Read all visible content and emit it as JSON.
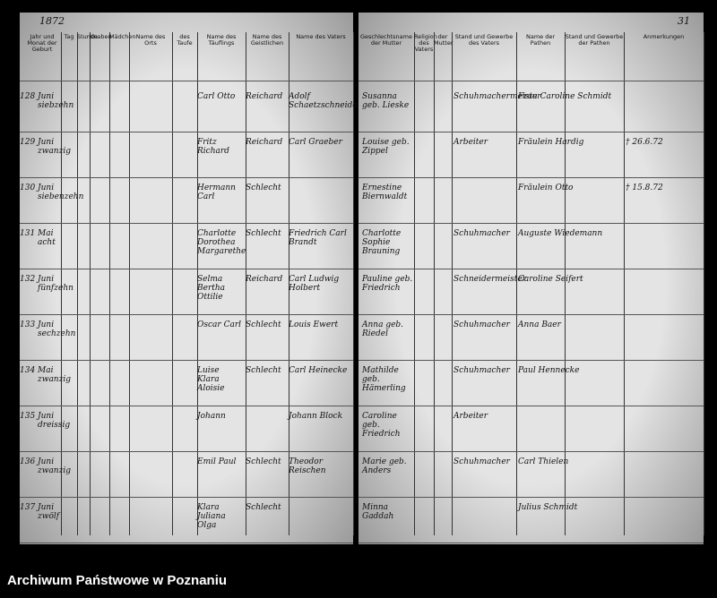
{
  "header": {
    "year": "1872",
    "page_number": "31"
  },
  "left_columns": [
    "Jahr und Monat der Geburt",
    "Tag",
    "Stunde",
    "Knaben",
    "Mädchen",
    "Name des Orts",
    "des Taufe",
    "Name des Täuflings",
    "Name des Geistlichen",
    "Name des Vaters"
  ],
  "right_columns": [
    "Geschlechtsname der Mutter",
    "Religion des Vaters",
    "der Mutter",
    "Stand und Gewerbe des Vaters",
    "Name der Pathen",
    "Stand und Gewerbe der Pathen",
    "Anmerkungen"
  ],
  "rows": [
    {
      "no": "128",
      "month": "Juni siebzehn",
      "child": "Carl Otto",
      "pastor": "Reichard",
      "father": "Adolf Schaetzschneider",
      "mother": "Susanna geb. Lieske",
      "occupation": "Schuhmachermeister",
      "sponsors": "Frau Caroline Schmidt"
    },
    {
      "no": "129",
      "month": "Juni zwanzig",
      "child": "Fritz Richard",
      "pastor": "Reichard",
      "father": "Carl Graeber",
      "mother": "Louise geb. Zippel",
      "occupation": "Arbeiter",
      "sponsors": "Fräulein Hardig",
      "note": "† 26.6.72"
    },
    {
      "no": "130",
      "month": "Juni siebenzehn",
      "child": "Hermann Carl",
      "pastor": "Schlecht",
      "mother": "Ernestine Biernwaldt",
      "sponsors": "Fräulein Otto",
      "note": "† 15.8.72"
    },
    {
      "no": "131",
      "month": "Mai acht",
      "child": "Charlotte Dorothea Margarethe",
      "pastor": "Schlecht",
      "father": "Friedrich Carl Brandt",
      "mother": "Charlotte Sophie Brauning",
      "occupation": "Schuhmacher",
      "sponsors": "Auguste Wiedemann"
    },
    {
      "no": "132",
      "month": "Juni fünfzehn",
      "child": "Selma Bertha Ottilie",
      "pastor": "Reichard",
      "father": "Carl Ludwig Holbert",
      "mother": "Pauline geb. Friedrich",
      "occupation": "Schneidermeister",
      "sponsors": "Caroline Seifert"
    },
    {
      "no": "133",
      "month": "Juni sechzehn",
      "child": "Oscar Carl",
      "pastor": "Schlecht",
      "father": "Louis Ewert",
      "mother": "Anna geb. Riedel",
      "occupation": "Schuhmacher",
      "sponsors": "Anna Baer"
    },
    {
      "no": "134",
      "month": "Mai zwanzig",
      "child": "Luise Klara Aloisie",
      "pastor": "Schlecht",
      "father": "Carl Heinecke",
      "mother": "Mathilde geb. Hämerling",
      "occupation": "Schuhmacher",
      "sponsors": "Paul Hennecke"
    },
    {
      "no": "135",
      "month": "Juni dreissig",
      "child": "Johann",
      "father": "Johann Block",
      "mother": "Caroline geb. Friedrich",
      "occupation": "Arbeiter"
    },
    {
      "no": "136",
      "month": "Juni zwanzig",
      "child": "Emil Paul",
      "pastor": "Schlecht",
      "father": "Theodor Reischen",
      "mother": "Marie geb. Anders",
      "occupation": "Schuhmacher",
      "sponsors": "Carl Thielen"
    },
    {
      "no": "137",
      "month": "Juni zwölf",
      "child": "Klara Juliana Olga",
      "pastor": "Schlecht",
      "mother": "Minna Gaddah",
      "sponsors": "Julius Schmidt"
    }
  ],
  "footer": "Archiwum Państwowe w Poznaniu"
}
